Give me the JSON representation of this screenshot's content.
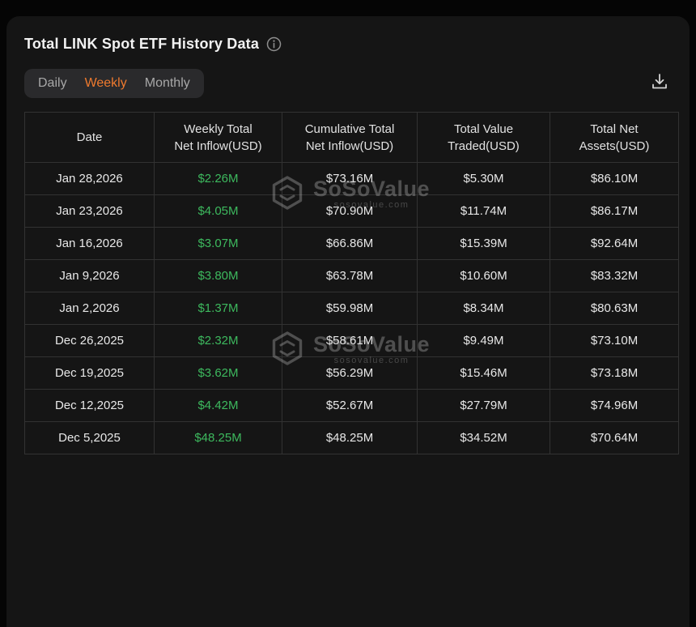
{
  "card": {
    "title": "Total LINK Spot ETF History Data"
  },
  "icons": {
    "info": "info-circle-icon",
    "download": "download-icon",
    "watermark_logo": "sosovalue-hexagon-logo"
  },
  "tabs": {
    "items": [
      {
        "label": "Daily",
        "active": false
      },
      {
        "label": "Weekly",
        "active": true
      },
      {
        "label": "Monthly",
        "active": false
      }
    ]
  },
  "table": {
    "columns": [
      {
        "line1": "Date",
        "line2": ""
      },
      {
        "line1": "Weekly Total",
        "line2": "Net Inflow(USD)"
      },
      {
        "line1": "Cumulative Total",
        "line2": "Net Inflow(USD)"
      },
      {
        "line1": "Total Value",
        "line2": "Traded(USD)"
      },
      {
        "line1": "Total Net",
        "line2": "Assets(USD)"
      }
    ],
    "rows": [
      {
        "date": "Jan 28,2026",
        "net_inflow": "$2.26M",
        "cumulative_inflow": "$73.16M",
        "value_traded": "$5.30M",
        "net_assets": "$86.10M"
      },
      {
        "date": "Jan 23,2026",
        "net_inflow": "$4.05M",
        "cumulative_inflow": "$70.90M",
        "value_traded": "$11.74M",
        "net_assets": "$86.17M"
      },
      {
        "date": "Jan 16,2026",
        "net_inflow": "$3.07M",
        "cumulative_inflow": "$66.86M",
        "value_traded": "$15.39M",
        "net_assets": "$92.64M"
      },
      {
        "date": "Jan 9,2026",
        "net_inflow": "$3.80M",
        "cumulative_inflow": "$63.78M",
        "value_traded": "$10.60M",
        "net_assets": "$83.32M"
      },
      {
        "date": "Jan 2,2026",
        "net_inflow": "$1.37M",
        "cumulative_inflow": "$59.98M",
        "value_traded": "$8.34M",
        "net_assets": "$80.63M"
      },
      {
        "date": "Dec 26,2025",
        "net_inflow": "$2.32M",
        "cumulative_inflow": "$58.61M",
        "value_traded": "$9.49M",
        "net_assets": "$73.10M"
      },
      {
        "date": "Dec 19,2025",
        "net_inflow": "$3.62M",
        "cumulative_inflow": "$56.29M",
        "value_traded": "$15.46M",
        "net_assets": "$73.18M"
      },
      {
        "date": "Dec 12,2025",
        "net_inflow": "$4.42M",
        "cumulative_inflow": "$52.67M",
        "value_traded": "$27.79M",
        "net_assets": "$74.96M"
      },
      {
        "date": "Dec 5,2025",
        "net_inflow": "$48.25M",
        "cumulative_inflow": "$48.25M",
        "value_traded": "$34.52M",
        "net_assets": "$70.64M"
      }
    ]
  },
  "watermark": {
    "brand": "SoSoValue",
    "domain": "sosovalue.com"
  },
  "colors": {
    "positive": "#3db95e",
    "accent": "#ef7a2e",
    "card_bg": "#151515",
    "page_bg": "#050505",
    "border": "#323232"
  }
}
